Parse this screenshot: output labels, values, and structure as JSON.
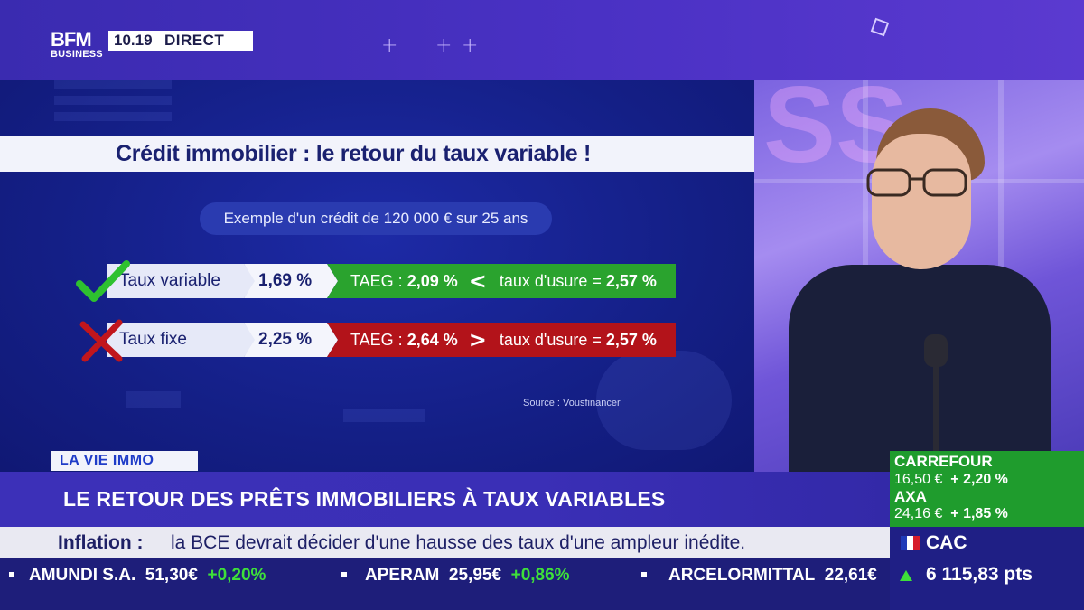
{
  "channel": {
    "logo_top": "BFM",
    "logo_bottom": "BUSINESS",
    "time": "10.19",
    "status": "DIRECT"
  },
  "infographic": {
    "title": "Crédit immobilier : le retour du taux variable !",
    "subtitle": "Exemple d'un crédit de 120 000 € sur 25 ans",
    "rows": [
      {
        "label": "Taux variable",
        "rate": "1,69 %",
        "taeg_label": "TAEG :",
        "taeg_value": "2,09 %",
        "comparator": "<",
        "usure_label": "taux d'usure =",
        "usure_value": "2,57 %",
        "status": "valid",
        "mark_icon": "check-icon",
        "color": "#2aa32e"
      },
      {
        "label": "Taux fixe",
        "rate": "2,25 %",
        "taeg_label": "TAEG :",
        "taeg_value": "2,64 %",
        "comparator": ">",
        "usure_label": "taux d'usure =",
        "usure_value": "2,57 %",
        "status": "invalid",
        "mark_icon": "cross-icon",
        "color": "#b3131a"
      }
    ],
    "source": "Source : Vousfinancer"
  },
  "lower_third": {
    "tag": "LA VIE IMMO",
    "headline": "LE RETOUR DES PRÊTS IMMOBILIERS À TAUX VARIABLES",
    "news_label": "Inflation :",
    "news_text": "la BCE devrait décider d'une hausse des taux d'une ampleur inédite."
  },
  "ticker": [
    {
      "name": "AMUNDI S.A.",
      "price": "51,30€",
      "change": "+0,20%"
    },
    {
      "name": "APERAM",
      "price": "25,95€",
      "change": "+0,86%"
    },
    {
      "name": "ARCELORMITTAL",
      "price": "22,61€",
      "change": ""
    }
  ],
  "market_panel": {
    "stocks": [
      {
        "name": "CARREFOUR",
        "price": "16,50 €",
        "change": "+ 2,20 %"
      },
      {
        "name": "AXA",
        "price": "24,16 €",
        "change": "+ 1,85 %"
      }
    ],
    "index_name": "CAC",
    "index_value": "6 115,83 pts",
    "index_trend": "up"
  },
  "colors": {
    "brand_purple": "#3c30b8",
    "positive": "#3ee03a",
    "negative": "#b3131a",
    "valid_row": "#2aa32e"
  }
}
